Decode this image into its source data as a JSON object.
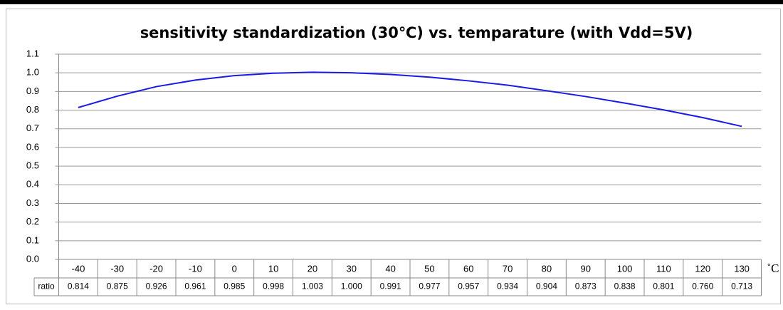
{
  "chart_data": {
    "type": "line",
    "title": "sensitivity standardization (30℃) vs. temparature (with Vdd=5V)",
    "x_label": "˚C",
    "categories": [
      "-40",
      "-30",
      "-20",
      "-10",
      "0",
      "10",
      "20",
      "30",
      "40",
      "50",
      "60",
      "70",
      "80",
      "90",
      "100",
      "110",
      "120",
      "130"
    ],
    "series": [
      {
        "name": "ratio",
        "color": "#1a1ae6",
        "values": [
          0.814,
          0.875,
          0.926,
          0.961,
          0.985,
          0.998,
          1.003,
          1.0,
          0.991,
          0.977,
          0.957,
          0.934,
          0.904,
          0.873,
          0.838,
          0.801,
          0.76,
          0.713
        ],
        "value_labels": [
          "0.814",
          "0.875",
          "0.926",
          "0.961",
          "0.985",
          "0.998",
          "1.003",
          "1.000",
          "0.991",
          "0.977",
          "0.957",
          "0.934",
          "0.904",
          "0.873",
          "0.838",
          "0.801",
          "0.760",
          "0.713"
        ]
      }
    ],
    "ylim": [
      0,
      1.1
    ],
    "yticks": [
      {
        "value": 0,
        "label": "0.0"
      },
      0.1,
      0.2,
      0.3,
      0.4,
      0.5,
      0.6,
      0.7,
      0.8,
      0.9,
      {
        "value": 1,
        "label": "1.0"
      },
      1.1
    ],
    "grid": true
  }
}
